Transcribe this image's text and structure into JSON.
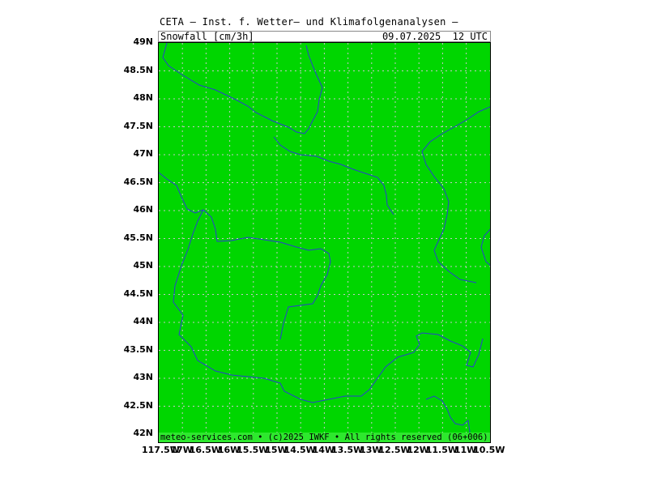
{
  "title": "CETA — Inst. f. Wetter— und Klimafolgenanalysen —",
  "field_label": "Snowfall [cm/3h]",
  "valid_time": "09.07.2025  12 UTC",
  "footer": "meteo-services.com • (c)2025 IWKF • All rights reserved (06+006)",
  "colors": {
    "fill": "#00d600",
    "coast": "#2a3fd0",
    "grid": "#c8c8c8",
    "footer_bg": "#2ee82e"
  },
  "map": {
    "lat_range": [
      41.85,
      49.0
    ],
    "lon_range": [
      -117.5,
      -10.5
    ],
    "lat_labels": [
      "49N",
      "48.5N",
      "48N",
      "47.5N",
      "47N",
      "46.5N",
      "46N",
      "45.5N",
      "45N",
      "44.5N",
      "44N",
      "43.5N",
      "43N",
      "42.5N",
      "42N"
    ],
    "lon_labels": [
      "117.5W",
      "17W",
      "16.5W",
      "16W",
      "15.5W",
      "15W",
      "14.5W",
      "14W",
      "13.5W",
      "13W",
      "12.5W",
      "12W",
      "11.5W",
      "11W",
      "10.5W"
    ]
  }
}
